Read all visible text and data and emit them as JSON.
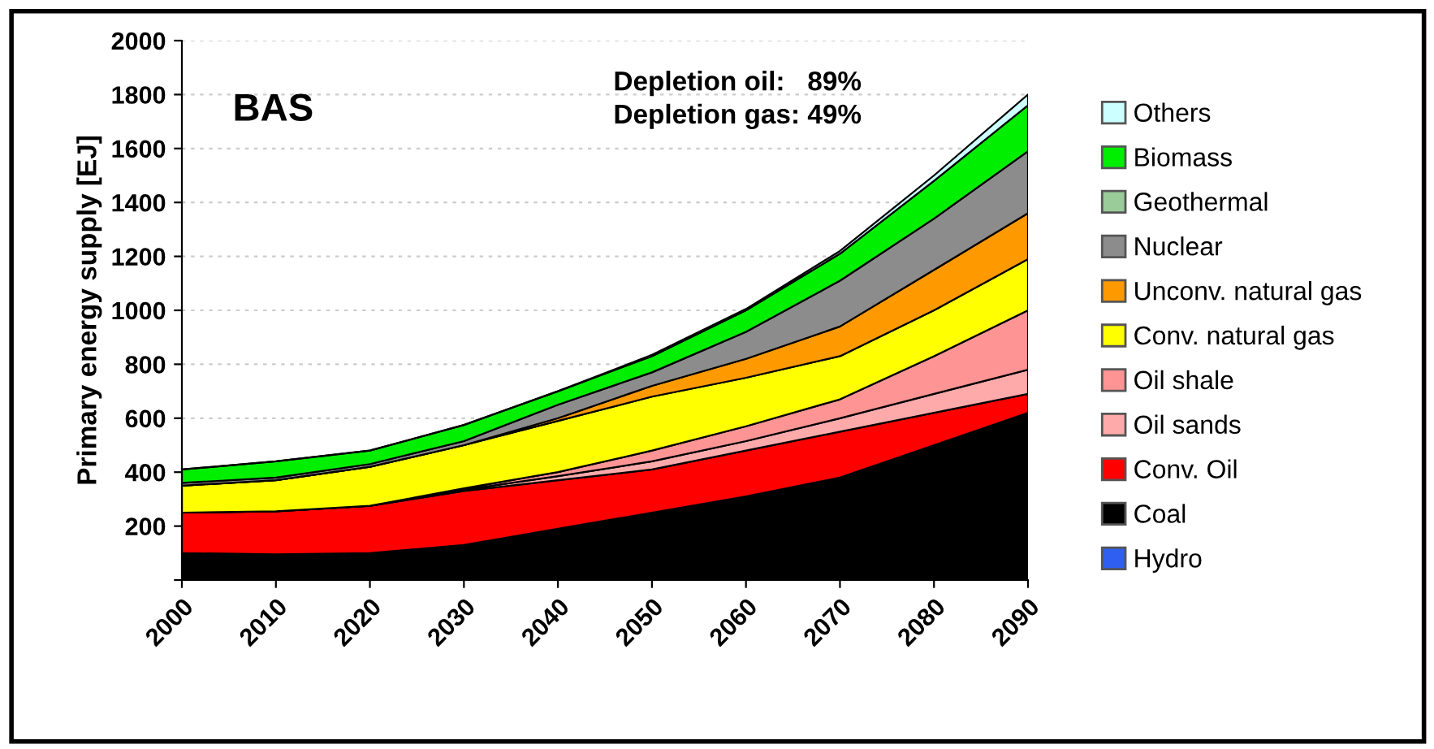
{
  "chart_data": {
    "type": "area",
    "stacked": true,
    "ylabel": "Primary energy supply [EJ]",
    "x": [
      2000,
      2010,
      2020,
      2030,
      2040,
      2050,
      2060,
      2070,
      2080,
      2090
    ],
    "xlim": [
      2000,
      2090
    ],
    "xticks": [
      2000,
      2010,
      2020,
      2030,
      2040,
      2050,
      2060,
      2070,
      2080,
      2090
    ],
    "ylim": [
      0,
      2000
    ],
    "yticks": [
      {
        "value": 0,
        "label": null
      },
      200,
      400,
      600,
      800,
      1000,
      1200,
      1400,
      1600,
      1800,
      2000
    ],
    "grid": "y",
    "legend": "right",
    "annotations": [
      "BAS",
      "Depletion oil:   89%\nDepletion gas: 49%"
    ],
    "series": [
      {
        "name": "Hydro",
        "color": "#2e5ff0",
        "values": [
          null,
          null,
          null,
          null,
          null,
          null,
          null,
          null,
          null,
          null
        ]
      },
      {
        "name": "Coal",
        "color": "#000000",
        "values": [
          100,
          95,
          100,
          130,
          190,
          250,
          310,
          380,
          500,
          620
        ]
      },
      {
        "name": "Conv. Oil",
        "color": "#ff0000",
        "values": [
          150,
          160,
          175,
          200,
          180,
          160,
          170,
          170,
          120,
          70
        ]
      },
      {
        "name": "Oil sands",
        "color": "#ffaaaa",
        "values": [
          0,
          0,
          0,
          5,
          15,
          30,
          35,
          50,
          70,
          90
        ]
      },
      {
        "name": "Oil shale",
        "color": "#ff9494",
        "values": [
          0,
          0,
          0,
          5,
          15,
          40,
          55,
          70,
          140,
          220
        ]
      },
      {
        "name": "Conv. natural gas",
        "color": "#ffff00",
        "values": [
          100,
          115,
          145,
          160,
          190,
          200,
          180,
          160,
          170,
          190
        ]
      },
      {
        "name": "Unconv. natural gas",
        "color": "#ff9900",
        "values": [
          0,
          0,
          0,
          0,
          10,
          40,
          70,
          110,
          150,
          170
        ]
      },
      {
        "name": "Nuclear",
        "color": "#8c8c8c",
        "values": [
          10,
          10,
          10,
          15,
          50,
          50,
          100,
          170,
          190,
          230
        ]
      },
      {
        "name": "Geothermal",
        "color": "#99cc99",
        "values": [
          null,
          null,
          null,
          null,
          null,
          null,
          null,
          null,
          null,
          null
        ]
      },
      {
        "name": "Biomass",
        "color": "#00ee00",
        "values": [
          50,
          60,
          50,
          60,
          50,
          60,
          80,
          100,
          140,
          170
        ]
      },
      {
        "name": "Others",
        "color": "#ccffff",
        "values": [
          0,
          0,
          0,
          0,
          0,
          5,
          5,
          10,
          20,
          40
        ]
      }
    ]
  }
}
